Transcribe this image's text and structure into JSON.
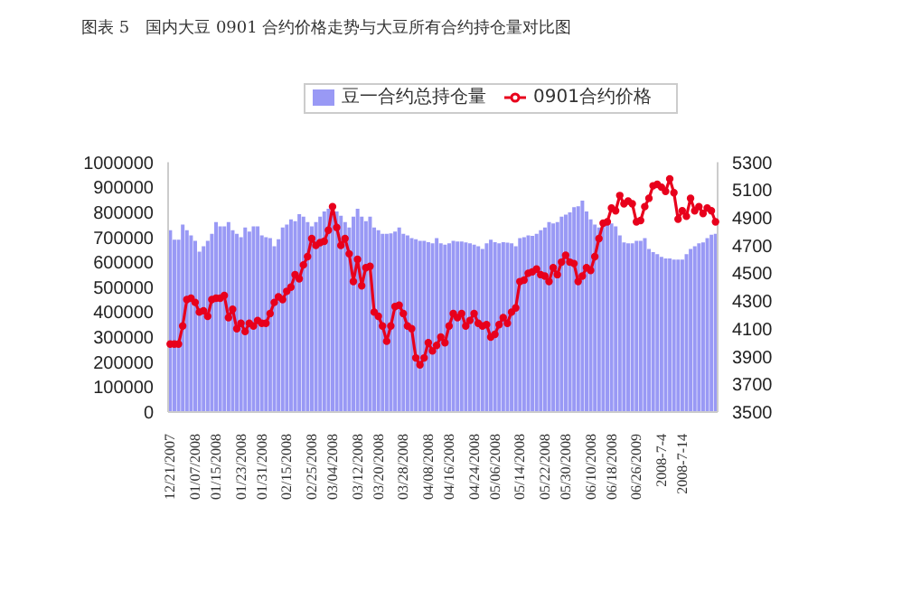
{
  "chart_data": {
    "type": "bar",
    "title": "图表 5　国内大豆 0901 合约价格走势与大豆所有合约持仓量对比图",
    "categories": [
      "12/21/2007",
      null,
      null,
      null,
      null,
      null,
      "01/07/2008",
      null,
      null,
      null,
      null,
      "01/15/2008",
      null,
      null,
      null,
      null,
      null,
      "01/23/2008",
      null,
      null,
      null,
      null,
      "01/31/2008",
      null,
      null,
      null,
      null,
      null,
      "02/15/2008",
      null,
      null,
      null,
      null,
      null,
      "02/25/2008",
      null,
      null,
      null,
      null,
      "03/04/2008",
      null,
      null,
      null,
      null,
      null,
      "03/12/2008",
      null,
      null,
      null,
      null,
      "03/20/2008",
      null,
      null,
      null,
      null,
      null,
      "03/28/2008",
      null,
      null,
      null,
      null,
      null,
      "04/08/2008",
      null,
      null,
      null,
      null,
      "04/16/2008",
      null,
      null,
      null,
      null,
      null,
      "04/24/2008",
      null,
      null,
      null,
      null,
      "05/06/2008",
      null,
      null,
      null,
      null,
      null,
      "05/14/2008",
      null,
      null,
      null,
      null,
      null,
      "05/22/2008",
      null,
      null,
      null,
      null,
      "05/30/2008",
      null,
      null,
      null,
      null,
      null,
      "06/10/2008",
      null,
      null,
      null,
      null,
      "06/18/2008",
      null,
      null,
      null,
      null,
      null,
      "06/26/2009",
      null,
      null,
      null,
      null,
      null,
      "2008-7-4",
      null,
      null,
      null,
      null,
      "2008-7-14",
      null,
      null,
      null,
      null,
      null,
      null,
      null,
      null
    ],
    "series": [
      {
        "name": "豆一合约总持仓量",
        "color": "#9999f5",
        "values": [
          728000,
          690000,
          690000,
          750000,
          728000,
          707000,
          685000,
          642000,
          664000,
          685000,
          713000,
          760000,
          743000,
          743000,
          760000,
          728000,
          713000,
          700000,
          739000,
          722000,
          743000,
          743000,
          707000,
          700000,
          696000,
          664000,
          692000,
          739000,
          750000,
          771000,
          764000,
          792000,
          782000,
          760000,
          743000,
          760000,
          782000,
          803000,
          814000,
          810000,
          803000,
          786000,
          760000,
          739000,
          782000,
          814000,
          782000,
          764000,
          782000,
          739000,
          728000,
          713000,
          713000,
          715000,
          722000,
          739000,
          713000,
          707000,
          696000,
          692000,
          685000,
          685000,
          680000,
          675000,
          696000,
          675000,
          670000,
          675000,
          685000,
          683000,
          683000,
          679000,
          675000,
          670000,
          664000,
          653000,
          675000,
          690000,
          680000,
          675000,
          680000,
          678000,
          675000,
          664000,
          696000,
          700000,
          707000,
          705000,
          713000,
          728000,
          739000,
          760000,
          755000,
          760000,
          782000,
          790000,
          799000,
          820000,
          824000,
          846000,
          803000,
          771000,
          750000,
          739000,
          750000,
          760000,
          755000,
          743000,
          707000,
          679000,
          675000,
          675000,
          685000,
          685000,
          696000,
          653000,
          640000,
          632000,
          621000,
          615000,
          615000,
          610000,
          610000,
          610000,
          632000,
          653000,
          664000,
          675000,
          679000,
          696000,
          710000,
          713000
        ]
      },
      {
        "name": "0901合约价格",
        "type": "line",
        "axis": "y2",
        "color": "#e8001c",
        "values": [
          3990,
          3990,
          3990,
          4120,
          4310,
          4320,
          4290,
          4220,
          4230,
          4190,
          4310,
          4320,
          4320,
          4340,
          4180,
          4240,
          4100,
          4140,
          4080,
          4140,
          4120,
          4160,
          4140,
          4140,
          4210,
          4290,
          4330,
          4310,
          4370,
          4400,
          4490,
          4460,
          4560,
          4620,
          4750,
          4700,
          4720,
          4730,
          4810,
          4980,
          4830,
          4700,
          4750,
          4640,
          4440,
          4600,
          4410,
          4540,
          4550,
          4220,
          4190,
          4120,
          4010,
          4120,
          4260,
          4270,
          4210,
          4120,
          4100,
          3890,
          3840,
          3890,
          4000,
          3940,
          3980,
          4040,
          4000,
          4120,
          4210,
          4180,
          4210,
          4120,
          4160,
          4210,
          4140,
          4120,
          4130,
          4040,
          4060,
          4130,
          4180,
          4140,
          4220,
          4250,
          4440,
          4450,
          4500,
          4510,
          4530,
          4490,
          4480,
          4440,
          4540,
          4490,
          4580,
          4630,
          4580,
          4570,
          4440,
          4480,
          4540,
          4520,
          4620,
          4750,
          4860,
          4870,
          4970,
          4950,
          5060,
          5000,
          5020,
          5000,
          4870,
          4880,
          4980,
          5040,
          5130,
          5140,
          5120,
          5090,
          5180,
          5080,
          4890,
          4950,
          4910,
          5040,
          4950,
          4980,
          4930,
          4970,
          4950,
          4870
        ]
      }
    ],
    "ylim": [
      0,
      1000000
    ],
    "yticks": [
      0,
      100000,
      200000,
      300000,
      400000,
      500000,
      600000,
      700000,
      800000,
      900000,
      1000000
    ],
    "y2lim": [
      3500,
      5300
    ],
    "y2ticks": [
      3500,
      3700,
      3900,
      4100,
      4300,
      4500,
      4700,
      4900,
      5100,
      5300
    ],
    "legend": "top",
    "marker": "circle",
    "line_style": "solid"
  }
}
